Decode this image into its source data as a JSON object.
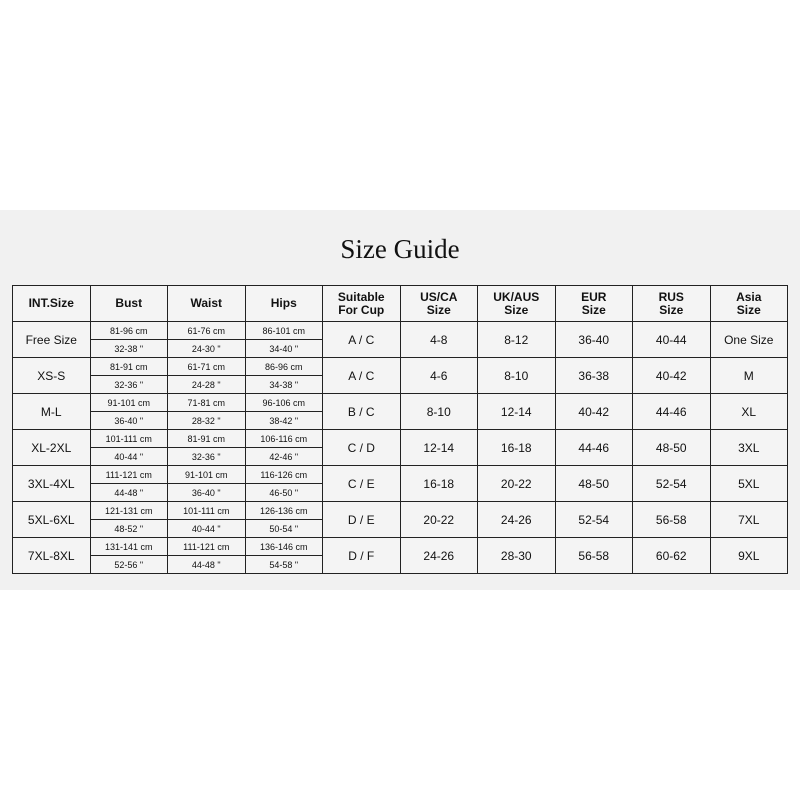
{
  "title": "Size Guide",
  "headers": [
    "INT.Size",
    "Bust",
    "Waist",
    "Hips",
    "Suitable\nFor Cup",
    "US/CA\nSize",
    "UK/AUS\nSize",
    "EUR\nSize",
    "RUS\nSize",
    "Asia\nSize"
  ],
  "rows": [
    {
      "size": "Free Size",
      "bust": [
        "81-96 cm",
        "32-38 \""
      ],
      "waist": [
        "61-76 cm",
        "24-30 \""
      ],
      "hips": [
        "86-101 cm",
        "34-40 \""
      ],
      "cup": "A / C",
      "us": "4-8",
      "uk": "8-12",
      "eur": "36-40",
      "rus": "40-44",
      "asia": "One Size"
    },
    {
      "size": "XS-S",
      "bust": [
        "81-91 cm",
        "32-36 \""
      ],
      "waist": [
        "61-71 cm",
        "24-28 \""
      ],
      "hips": [
        "86-96 cm",
        "34-38 \""
      ],
      "cup": "A / C",
      "us": "4-6",
      "uk": "8-10",
      "eur": "36-38",
      "rus": "40-42",
      "asia": "M"
    },
    {
      "size": "M-L",
      "bust": [
        "91-101 cm",
        "36-40 \""
      ],
      "waist": [
        "71-81 cm",
        "28-32 \""
      ],
      "hips": [
        "96-106 cm",
        "38-42 \""
      ],
      "cup": "B / C",
      "us": "8-10",
      "uk": "12-14",
      "eur": "40-42",
      "rus": "44-46",
      "asia": "XL"
    },
    {
      "size": "XL-2XL",
      "bust": [
        "101-111 cm",
        "40-44 \""
      ],
      "waist": [
        "81-91 cm",
        "32-36 \""
      ],
      "hips": [
        "106-116 cm",
        "42-46 \""
      ],
      "cup": "C / D",
      "us": "12-14",
      "uk": "16-18",
      "eur": "44-46",
      "rus": "48-50",
      "asia": "3XL"
    },
    {
      "size": "3XL-4XL",
      "bust": [
        "111-121 cm",
        "44-48 \""
      ],
      "waist": [
        "91-101 cm",
        "36-40 \""
      ],
      "hips": [
        "116-126 cm",
        "46-50 \""
      ],
      "cup": "C / E",
      "us": "16-18",
      "uk": "20-22",
      "eur": "48-50",
      "rus": "52-54",
      "asia": "5XL"
    },
    {
      "size": "5XL-6XL",
      "bust": [
        "121-131 cm",
        "48-52 \""
      ],
      "waist": [
        "101-111 cm",
        "40-44 \""
      ],
      "hips": [
        "126-136 cm",
        "50-54 \""
      ],
      "cup": "D / E",
      "us": "20-22",
      "uk": "24-26",
      "eur": "52-54",
      "rus": "56-58",
      "asia": "7XL"
    },
    {
      "size": "7XL-8XL",
      "bust": [
        "131-141 cm",
        "52-56 \""
      ],
      "waist": [
        "111-121 cm",
        "44-48 \""
      ],
      "hips": [
        "136-146 cm",
        "54-58 \""
      ],
      "cup": "D / F",
      "us": "24-26",
      "uk": "28-30",
      "eur": "56-58",
      "rus": "60-62",
      "asia": "9XL"
    }
  ]
}
